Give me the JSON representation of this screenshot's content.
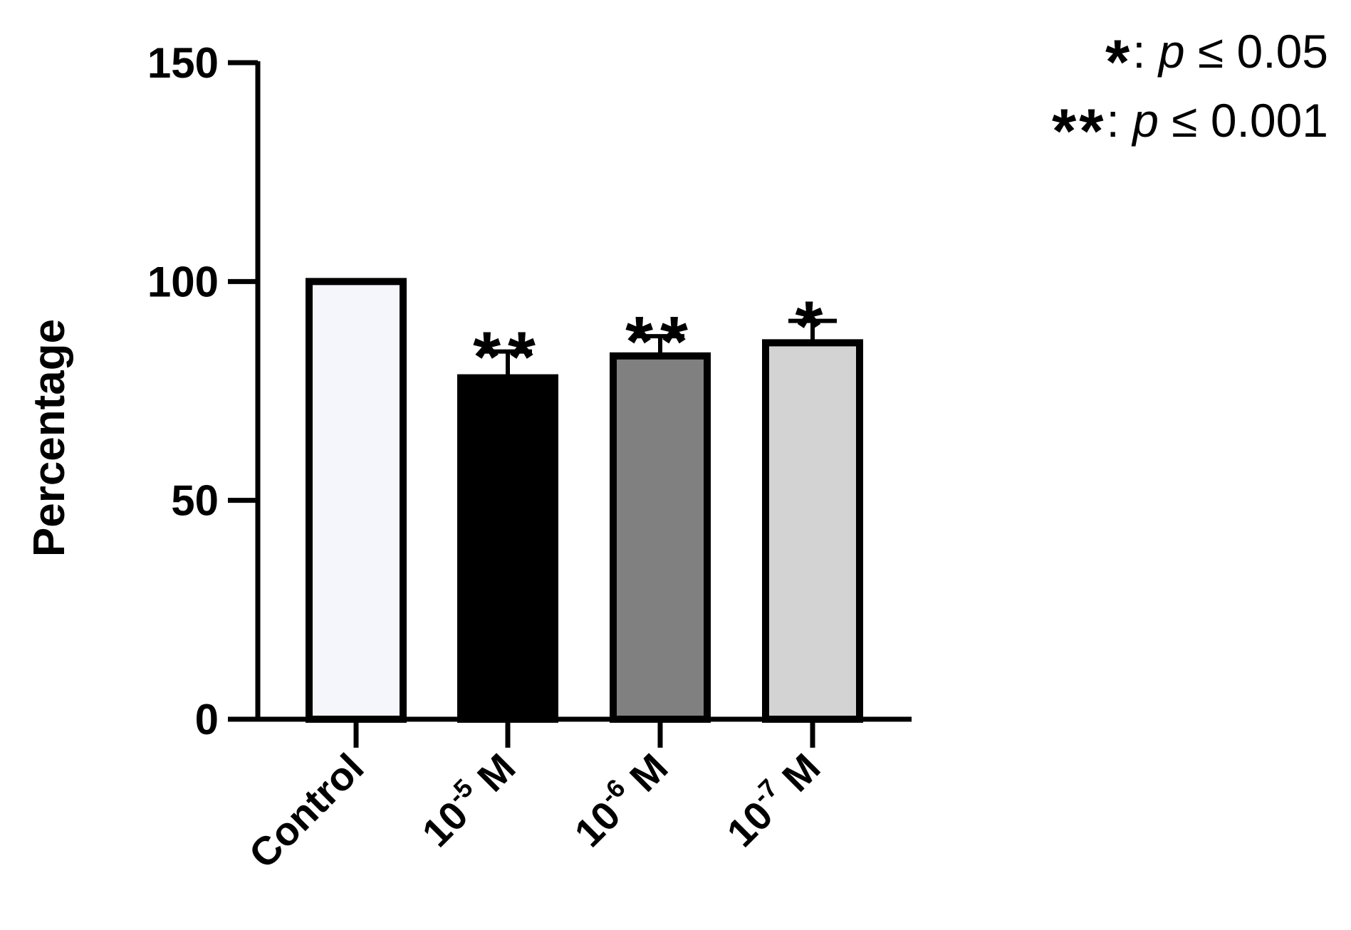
{
  "chart_data": {
    "type": "bar",
    "ylabel": "Percentage",
    "xlabel": "",
    "ylim": [
      0,
      150
    ],
    "yticks": [
      0,
      50,
      100,
      150
    ],
    "grid": false,
    "categories": [
      {
        "base": "Control",
        "exp": "",
        "unit": ""
      },
      {
        "base": "10",
        "exp": "-5",
        "unit": " M"
      },
      {
        "base": "10",
        "exp": "-6",
        "unit": " M"
      },
      {
        "base": "10",
        "exp": "-7",
        "unit": " M"
      }
    ],
    "values": [
      100,
      78,
      83,
      86
    ],
    "errors": [
      0,
      6,
      4.5,
      5
    ],
    "colors": [
      "#f5f6fc",
      "#000000",
      "#808080",
      "#d3d3d3"
    ],
    "significance": [
      "",
      "**",
      "**",
      "*"
    ],
    "legend": [
      {
        "symbol": "*",
        "text": ": ",
        "p": "p",
        "rest": " ≤ 0.05"
      },
      {
        "symbol": "**",
        "text": ": ",
        "p": "p",
        "rest": " ≤ 0.001"
      }
    ]
  }
}
